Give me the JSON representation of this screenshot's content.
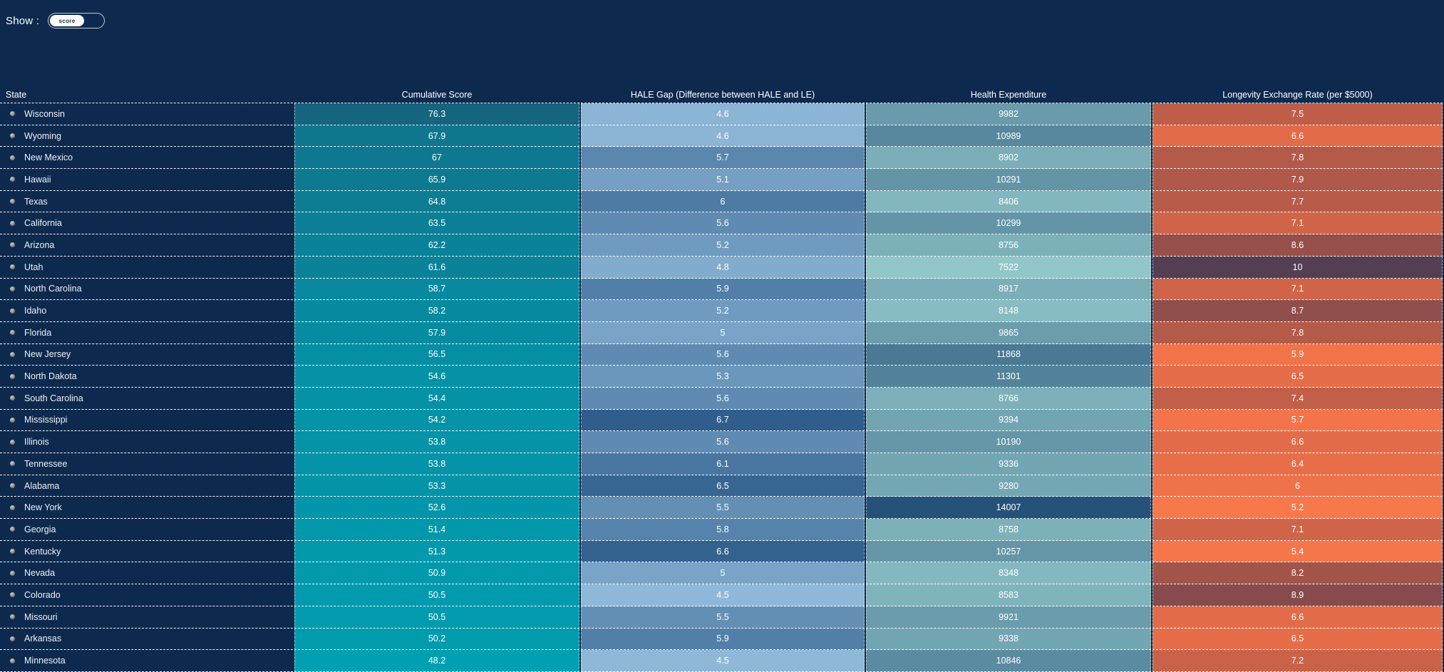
{
  "colors": {
    "background": "#0d2a4e",
    "row_divider": "#ffffff",
    "toggle_border": "#c3cad2",
    "toggle_pill": "#ffffff",
    "toggle_text": "#16304f",
    "score_scale_low": "#009fb2",
    "score_scale_high": "#15657e",
    "gap_scale_low": "#8fb8d8",
    "gap_scale_high": "#2f5e8c",
    "expenditure_scale_low": "#92c7ca",
    "expenditure_scale_high": "#255278",
    "rate_scale_low": "#f7784b",
    "rate_scale_high": "#533f51"
  },
  "controls": {
    "show_label": "Show :",
    "toggle_value": "score"
  },
  "chart_data": {
    "type": "heatmap-table",
    "columns": [
      "State",
      "Cumulative Score",
      "HALE Gap (Difference between HALE and LE)",
      "Health Expenditure",
      "Longevity Exchange Rate (per $5000)"
    ],
    "rows": [
      {
        "state": "Wisconsin",
        "score": 76.3,
        "score_color": "#15657e",
        "hale_gap": 4.6,
        "gap_color": "#8bb4d5",
        "expenditure": 9982,
        "exp_color": "#699bab",
        "rate": 7.5,
        "rate_color": "#bf5e48"
      },
      {
        "state": "Wyoming",
        "score": 67.9,
        "score_color": "#0f768e",
        "hale_gap": 4.6,
        "gap_color": "#8bb4d5",
        "expenditure": 10989,
        "exp_color": "#58889e",
        "rate": 6.6,
        "rate_color": "#e26c49"
      },
      {
        "state": "New Mexico",
        "score": 67,
        "score_color": "#0e7890",
        "hale_gap": 5.7,
        "gap_color": "#5b87af",
        "expenditure": 8902,
        "exp_color": "#7baeb9",
        "rate": 7.8,
        "rate_color": "#b45a49"
      },
      {
        "state": "Hawaii",
        "score": 65.9,
        "score_color": "#0d7a91",
        "hale_gap": 5.1,
        "gap_color": "#759fc3",
        "expenditure": 10291,
        "exp_color": "#6495a7",
        "rate": 7.9,
        "rate_color": "#b05849"
      },
      {
        "state": "Texas",
        "score": 64.8,
        "score_color": "#0c7d93",
        "hale_gap": 6,
        "gap_color": "#4e7ba4",
        "expenditure": 8406,
        "exp_color": "#83b7bf",
        "rate": 7.7,
        "rate_color": "#b85b48"
      },
      {
        "state": "California",
        "score": 63.5,
        "score_color": "#0b7f96",
        "hale_gap": 5.6,
        "gap_color": "#5f8bb2",
        "expenditure": 10299,
        "exp_color": "#6495a7",
        "rate": 7.1,
        "rate_color": "#cf6449"
      },
      {
        "state": "Arizona",
        "score": 62.2,
        "score_color": "#0a8298",
        "hale_gap": 5.2,
        "gap_color": "#709bc0",
        "expenditure": 8756,
        "exp_color": "#7db1ba",
        "rate": 8.6,
        "rate_color": "#964f4b"
      },
      {
        "state": "Utah",
        "score": 61.6,
        "score_color": "#0a8399",
        "hale_gap": 4.8,
        "gap_color": "#82acce",
        "expenditure": 7522,
        "exp_color": "#92c7ca",
        "rate": 10,
        "rate_color": "#533f51"
      },
      {
        "state": "North Carolina",
        "score": 58.7,
        "score_color": "#08899f",
        "hale_gap": 5.9,
        "gap_color": "#527fa8",
        "expenditure": 8917,
        "exp_color": "#7baeb8",
        "rate": 7.1,
        "rate_color": "#cf6449"
      },
      {
        "state": "Idaho",
        "score": 58.2,
        "score_color": "#078a9f",
        "hale_gap": 5.2,
        "gap_color": "#709bc0",
        "expenditure": 8148,
        "exp_color": "#87bcc2",
        "rate": 8.7,
        "rate_color": "#904e4c"
      },
      {
        "state": "Florida",
        "score": 57.9,
        "score_color": "#078ba0",
        "hale_gap": 5,
        "gap_color": "#79a4c7",
        "expenditure": 9865,
        "exp_color": "#6b9dac",
        "rate": 7.8,
        "rate_color": "#b45a49"
      },
      {
        "state": "New Jersey",
        "score": 56.5,
        "score_color": "#068ea3",
        "hale_gap": 5.6,
        "gap_color": "#5f8bb2",
        "expenditure": 11868,
        "exp_color": "#497993",
        "rate": 5.9,
        "rate_color": "#f1734a"
      },
      {
        "state": "North Dakota",
        "score": 54.6,
        "score_color": "#0592a6",
        "hale_gap": 5.3,
        "gap_color": "#6c97bc",
        "expenditure": 11301,
        "exp_color": "#52839a",
        "rate": 6.5,
        "rate_color": "#e56d49"
      },
      {
        "state": "South Carolina",
        "score": 54.4,
        "score_color": "#0592a7",
        "hale_gap": 5.6,
        "gap_color": "#5f8bb2",
        "expenditure": 8766,
        "exp_color": "#7db0ba",
        "rate": 7.4,
        "rate_color": "#c25f48"
      },
      {
        "state": "Mississippi",
        "score": 54.2,
        "score_color": "#0493a7",
        "hale_gap": 6.7,
        "gap_color": "#2f5e8c",
        "expenditure": 9394,
        "exp_color": "#72a5b2",
        "rate": 5.7,
        "rate_color": "#f3744a"
      },
      {
        "state": "Illinois",
        "score": 53.8,
        "score_color": "#0493a8",
        "hale_gap": 5.6,
        "gap_color": "#5f8bb2",
        "expenditure": 10190,
        "exp_color": "#6597a8",
        "rate": 6.6,
        "rate_color": "#e26c49"
      },
      {
        "state": "Tennessee",
        "score": 53.8,
        "score_color": "#0493a8",
        "hale_gap": 6.1,
        "gap_color": "#4977a1",
        "expenditure": 9336,
        "exp_color": "#73a6b3",
        "rate": 6.4,
        "rate_color": "#e86e49"
      },
      {
        "state": "Alabama",
        "score": 53.3,
        "score_color": "#0494a9",
        "hale_gap": 6.5,
        "gap_color": "#386693",
        "expenditure": 9280,
        "exp_color": "#74a7b4",
        "rate": 6,
        "rate_color": "#ee724a"
      },
      {
        "state": "New York",
        "score": 52.6,
        "score_color": "#0396aa",
        "hale_gap": 5.5,
        "gap_color": "#638fb5",
        "expenditure": 14007,
        "exp_color": "#255278",
        "rate": 5.2,
        "rate_color": "#f7784b"
      },
      {
        "state": "Georgia",
        "score": 51.4,
        "score_color": "#0298ac",
        "hale_gap": 5.8,
        "gap_color": "#5683ab",
        "expenditure": 8758,
        "exp_color": "#7db1ba",
        "rate": 7.1,
        "rate_color": "#cf6449"
      },
      {
        "state": "Kentucky",
        "score": 51.3,
        "score_color": "#0299ac",
        "hale_gap": 6.6,
        "gap_color": "#33628f",
        "expenditure": 10257,
        "exp_color": "#6496a7",
        "rate": 5.4,
        "rate_color": "#f5764a"
      },
      {
        "state": "Nevada",
        "score": 50.9,
        "score_color": "#0299ad",
        "hale_gap": 5,
        "gap_color": "#79a4c7",
        "expenditure": 8348,
        "exp_color": "#84b8c0",
        "rate": 8.2,
        "rate_color": "#a35449"
      },
      {
        "state": "Colorado",
        "score": 50.5,
        "score_color": "#029aae",
        "hale_gap": 4.5,
        "gap_color": "#8fb8d8",
        "expenditure": 8583,
        "exp_color": "#80b4bd",
        "rate": 8.9,
        "rate_color": "#874b4d"
      },
      {
        "state": "Missouri",
        "score": 50.5,
        "score_color": "#029aae",
        "hale_gap": 5.5,
        "gap_color": "#638fb5",
        "expenditure": 9921,
        "exp_color": "#6a9cac",
        "rate": 6.6,
        "rate_color": "#e26c49"
      },
      {
        "state": "Arkansas",
        "score": 50.2,
        "score_color": "#019bae",
        "hale_gap": 5.9,
        "gap_color": "#527fa8",
        "expenditure": 9338,
        "exp_color": "#73a6b3",
        "rate": 6.5,
        "rate_color": "#e56d49"
      },
      {
        "state": "Minnesota",
        "score": 48.2,
        "score_color": "#009fb2",
        "hale_gap": 4.5,
        "gap_color": "#8fb8d8",
        "expenditure": 10846,
        "exp_color": "#5a8ba0",
        "rate": 7.2,
        "rate_color": "#ca6249"
      }
    ]
  }
}
